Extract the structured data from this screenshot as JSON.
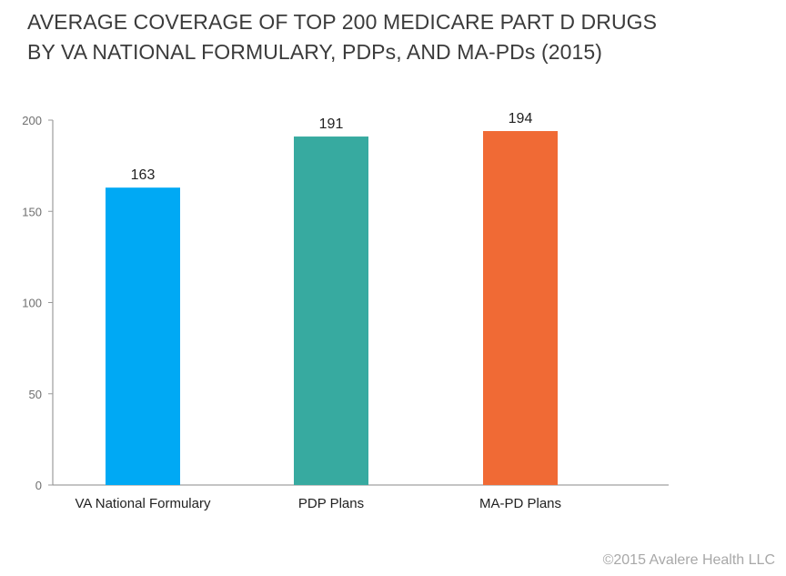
{
  "title": {
    "line1": "AVERAGE COVERAGE OF TOP 200 MEDICARE PART D DRUGS",
    "line2": "BY VA NATIONAL FORMULARY, PDPs, AND MA-PDs (2015)"
  },
  "copyright": "©2015 Avalere Health LLC",
  "chart_data": {
    "type": "bar",
    "title": "AVERAGE COVERAGE OF TOP 200 MEDICARE PART D DRUGS BY VA NATIONAL FORMULARY, PDPs, AND MA-PDs (2015)",
    "xlabel": "",
    "ylabel": "",
    "categories": [
      "VA National Formulary",
      "PDP Plans",
      "MA-PD Plans"
    ],
    "values": [
      163,
      191,
      194
    ],
    "colors": [
      "#00a9f4",
      "#37aaa0",
      "#f06a35"
    ],
    "ylim": [
      0,
      200
    ],
    "yticks": [
      0,
      50,
      100,
      150,
      200
    ],
    "grid": false,
    "legend": "none"
  }
}
